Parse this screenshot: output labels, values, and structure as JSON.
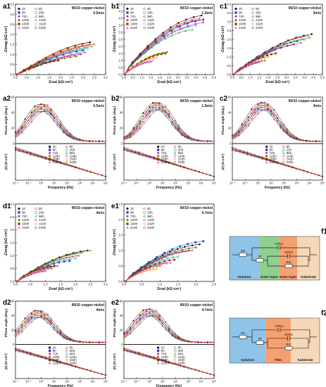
{
  "legend": {
    "left": [
      "1h",
      "9h",
      "72h",
      "120h",
      "168h",
      "216h"
    ],
    "right": [
      "5h",
      "25h",
      "96h",
      "144h",
      "192h",
      "240h"
    ],
    "colors": [
      "#111111",
      "#e62020",
      "#1f3fd6",
      "#10b0b0",
      "#cc22cc",
      "#1aa01a",
      "#808000",
      "#6a1a9a",
      "#7b3f00",
      "#ff7f00",
      "#ff66cc",
      "#8b0000"
    ]
  },
  "material": "90/10 copper-nickel",
  "panels": {
    "a1": {
      "label": "a1",
      "speed": "0.5m/s",
      "xlabel": "Zreal (kΩ·cm²)",
      "ylabel": "-Zimag (kΩ·cm²)",
      "xticks": [
        "0.0",
        "0.5",
        "1.0",
        "1.5",
        "2.0",
        "2.5",
        "3.0",
        "3.5",
        "4.0"
      ],
      "yticks": [
        "0.0",
        "0.5",
        "1.0",
        "1.5",
        "2.0",
        "2.5",
        "3.0",
        "3.5"
      ]
    },
    "b1": {
      "label": "b1",
      "speed": "1.5m/s",
      "xlabel": "Zreal (kΩ·cm²)",
      "ylabel": "-Zimag (kΩ·cm²)",
      "xticks": [
        "0.0",
        "0.5",
        "1.0",
        "1.5",
        "2.0",
        "2.5",
        "3.0",
        "3.5",
        "4.0",
        "4.5",
        "5.0"
      ],
      "yticks": [
        "0.0",
        "0.5",
        "1.0",
        "1.5",
        "2.0",
        "2.5",
        "3.0",
        "3.5",
        "4.0",
        "4.5",
        "5.0"
      ]
    },
    "c1": {
      "label": "c1",
      "speed": "3m/s",
      "xlabel": "Zreal (kΩ·cm²)",
      "ylabel": "-Zimag (kΩ·cm²)",
      "xticks": [
        "0.0",
        "0.5",
        "1.0",
        "1.5",
        "2.0",
        "2.5",
        "3.0",
        "3.5",
        "4.0",
        "4.5",
        "5.0"
      ],
      "yticks": [
        "0.0",
        "0.5",
        "1.0",
        "1.5",
        "2.0",
        "2.5",
        "3.0",
        "3.5",
        "4.0"
      ]
    },
    "a2": {
      "label": "a2",
      "speed": "0.5m/s",
      "ylabel_top": "Phase angle (deg.)",
      "ylabel_bot": "|Z| (Ω·cm²)",
      "xlabel": "Frequency (Hz)",
      "pticks": [
        "0",
        "10",
        "20",
        "30",
        "40",
        "50",
        "60"
      ]
    },
    "b2": {
      "label": "b2",
      "speed": "1.5m/s",
      "ylabel_top": "Phase angle (deg.)",
      "ylabel_bot": "|Z| (Ω·cm²)",
      "xlabel": "Frequency (Hz)",
      "pticks": [
        "0",
        "10",
        "20",
        "30",
        "40",
        "50",
        "60"
      ]
    },
    "c2": {
      "label": "c2",
      "speed": "3m/s",
      "ylabel_top": "Phase angle (deg.)",
      "ylabel_bot": "|Z| (Ω·cm²)",
      "xlabel": "Frequency (Hz)",
      "pticks": [
        "0",
        "10",
        "20",
        "30",
        "40",
        "50",
        "60"
      ]
    },
    "d1": {
      "label": "d1",
      "speed": "4m/s",
      "xlabel": "Zreal (kΩ·cm²)",
      "ylabel": "-Zimag (kΩ·cm²)",
      "xticks": [
        "0.0",
        "0.5",
        "1.0",
        "1.5",
        "2.0",
        "2.5",
        "3.0"
      ],
      "yticks": [
        "0.0",
        "0.5",
        "1.0",
        "1.5",
        "2.0",
        "2.5",
        "3.0"
      ]
    },
    "e1": {
      "label": "e1",
      "speed": "4.7m/s",
      "xlabel": "Zreal (kΩ·cm²)",
      "ylabel": "-Zimag (kΩ·cm²)",
      "xticks": [
        "0.0",
        "0.5",
        "1.0",
        "1.5",
        "2.0",
        "2.5"
      ],
      "yticks": [
        "0.0",
        "0.5",
        "1.0",
        "1.5",
        "2.0",
        "2.5"
      ]
    },
    "d2": {
      "label": "d2",
      "speed": "4m/s",
      "ylabel_top": "Phase angle (deg.)",
      "ylabel_bot": "|Z| (Ω·cm²)",
      "xlabel": "Frequency (Hz)",
      "pticks": [
        "0",
        "10",
        "20",
        "30",
        "40",
        "50",
        "60"
      ]
    },
    "e2": {
      "label": "e2",
      "speed": "4.7m/s",
      "ylabel_top": "Phase angle (deg.)",
      "ylabel_bot": "|Z| (Ω·cm²)",
      "xlabel": "Frequency (Hz)",
      "pticks": [
        "0",
        "10",
        "20",
        "30",
        "40",
        "50",
        "60"
      ]
    }
  },
  "freq_ticks": [
    "10⁻²",
    "10⁻¹",
    "10⁰",
    "10¹",
    "10²",
    "10³",
    "10⁴",
    "10⁵"
  ],
  "circuits": {
    "f1": {
      "label": "f1",
      "zones": [
        "Solution",
        "Outer layer",
        "Inner layer",
        "Substrate"
      ],
      "elements": [
        "Rs",
        "CPE1",
        "Rf",
        "CPE2",
        "Rct"
      ]
    },
    "f2": {
      "label": "f2",
      "zones": [
        "Solution",
        "Film",
        "Substrate"
      ],
      "elements": [
        "Rs",
        "CPE1",
        "Rf",
        "CPE2",
        "Rct"
      ]
    }
  }
}
